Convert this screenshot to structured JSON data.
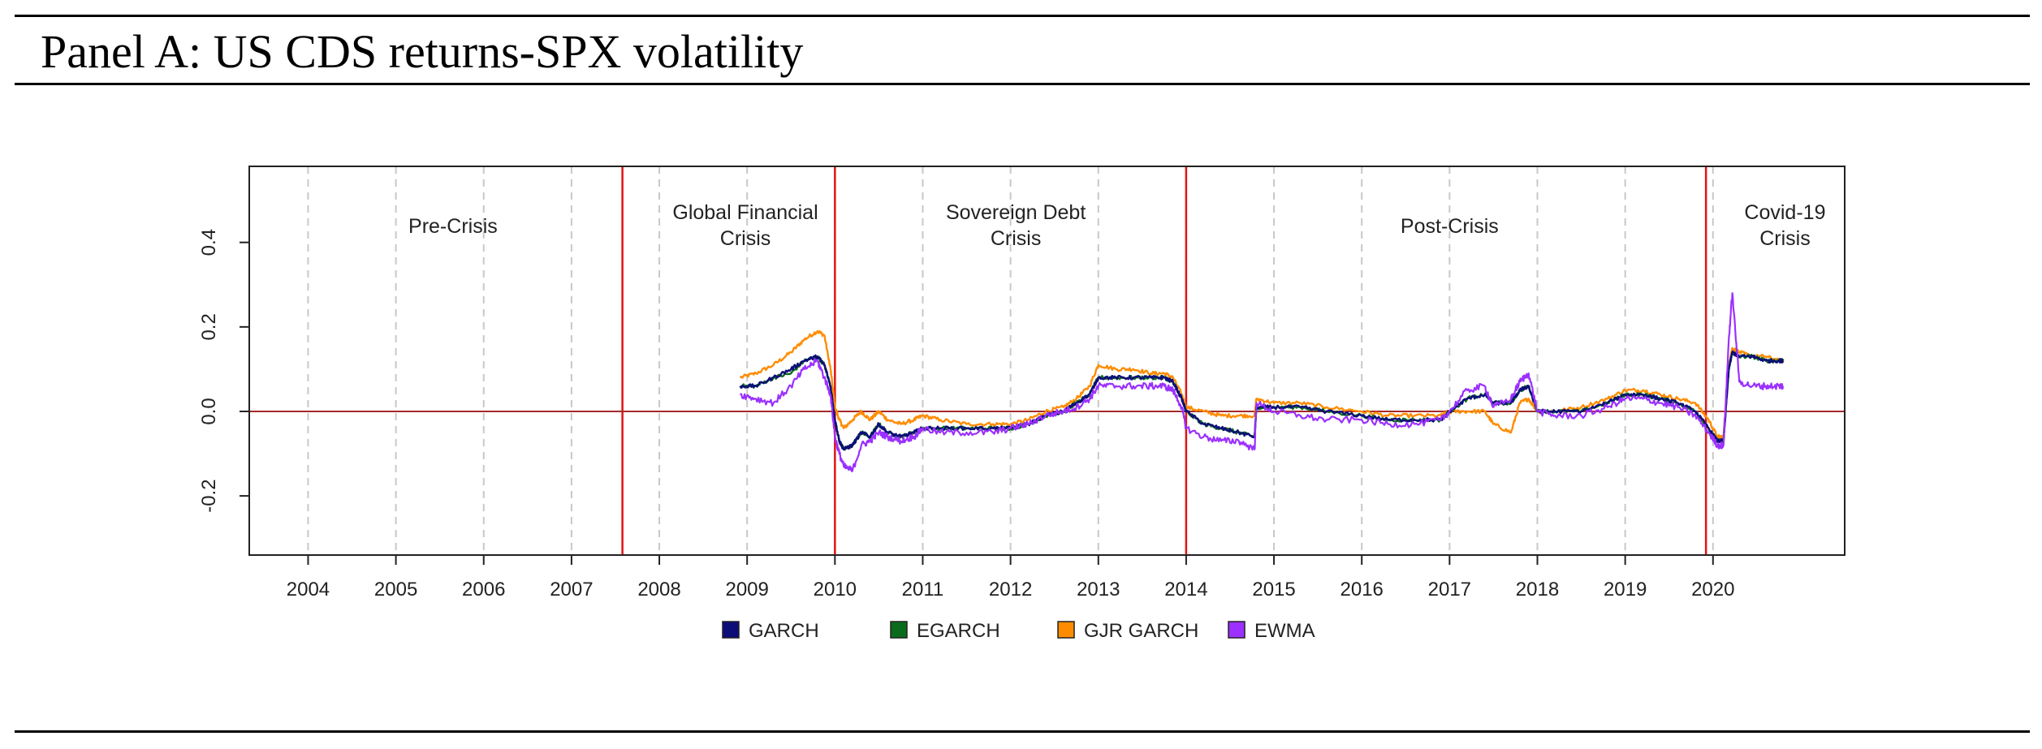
{
  "panel_title": "Panel A: US CDS returns-SPX volatility",
  "colors": {
    "GARCH": "#0d0d7a",
    "EGARCH": "#0b6b1c",
    "GJR GARCH": "#ff8c00",
    "EWMA": "#9b30ff",
    "regime_line": "#e11414",
    "zero_line": "#a52a2a",
    "grid": "#c8c8c8"
  },
  "chart_data": {
    "type": "line",
    "title": "Panel A: US CDS returns-SPX volatility",
    "xlabel": "",
    "ylabel": "",
    "xlim": [
      2003.33,
      2021.5
    ],
    "ylim": [
      -0.34,
      0.58
    ],
    "x_ticks": [
      2004,
      2005,
      2006,
      2007,
      2008,
      2009,
      2010,
      2011,
      2012,
      2013,
      2014,
      2015,
      2016,
      2017,
      2018,
      2019,
      2020
    ],
    "x_tick_labels": [
      "2004",
      "2005",
      "2006",
      "2007",
      "2008",
      "2009",
      "2010",
      "2011",
      "2012",
      "2013",
      "2014",
      "2015",
      "2016",
      "2017",
      "2018",
      "2019",
      "2020"
    ],
    "y_ticks": [
      -0.2,
      0.0,
      0.2,
      0.4
    ],
    "y_tick_labels": [
      "-0.2",
      "0.0",
      "0.2",
      "0.4"
    ],
    "reference_lines": {
      "horizontal": 0.0,
      "regime_boundaries": [
        2007.58,
        2010.0,
        2014.0,
        2019.92
      ]
    },
    "regions": [
      {
        "label_lines": [
          "Pre-Crisis"
        ],
        "x": 2005.65
      },
      {
        "label_lines": [
          "Global Financial",
          "Crisis"
        ],
        "x": 2008.98
      },
      {
        "label_lines": [
          "Sovereign Debt",
          "Crisis"
        ],
        "x": 2012.06
      },
      {
        "label_lines": [
          "Post-Crisis"
        ],
        "x": 2017.0
      },
      {
        "label_lines": [
          "Covid-19",
          "Crisis"
        ],
        "x": 2020.82
      }
    ],
    "legend": {
      "position": "bottom",
      "entries": [
        "GARCH",
        "EGARCH",
        "GJR GARCH",
        "EWMA"
      ]
    },
    "x": [
      2008.92,
      2009.1,
      2009.3,
      2009.5,
      2009.65,
      2009.8,
      2009.88,
      2009.95,
      2010.0,
      2010.05,
      2010.1,
      2010.2,
      2010.3,
      2010.4,
      2010.5,
      2010.6,
      2010.75,
      2010.9,
      2011.0,
      2011.2,
      2011.5,
      2011.8,
      2012.0,
      2012.2,
      2012.4,
      2012.6,
      2012.75,
      2012.9,
      2013.0,
      2013.2,
      2013.4,
      2013.6,
      2013.75,
      2013.85,
      2013.95,
      2014.0,
      2014.2,
      2014.4,
      2014.6,
      2014.78,
      2014.8,
      2015.0,
      2015.3,
      2015.6,
      2016.0,
      2016.3,
      2016.6,
      2016.9,
      2017.0,
      2017.2,
      2017.4,
      2017.5,
      2017.7,
      2017.8,
      2017.9,
      2018.0,
      2018.2,
      2018.5,
      2018.8,
      2019.0,
      2019.2,
      2019.4,
      2019.6,
      2019.8,
      2019.95,
      2020.05,
      2020.12,
      2020.18,
      2020.22,
      2020.3,
      2020.45,
      2020.6,
      2020.75,
      2020.8
    ],
    "series": [
      {
        "name": "GARCH",
        "values": [
          0.06,
          0.06,
          0.08,
          0.1,
          0.12,
          0.13,
          0.11,
          0.06,
          -0.02,
          -0.07,
          -0.09,
          -0.08,
          -0.05,
          -0.06,
          -0.03,
          -0.05,
          -0.06,
          -0.05,
          -0.04,
          -0.04,
          -0.04,
          -0.04,
          -0.04,
          -0.03,
          -0.01,
          0.0,
          0.02,
          0.04,
          0.08,
          0.08,
          0.08,
          0.08,
          0.08,
          0.07,
          0.03,
          0.0,
          -0.03,
          -0.04,
          -0.05,
          -0.06,
          0.01,
          0.01,
          0.01,
          0.0,
          -0.01,
          -0.02,
          -0.02,
          -0.02,
          0.0,
          0.03,
          0.04,
          0.02,
          0.02,
          0.05,
          0.06,
          0.0,
          0.0,
          0.0,
          0.02,
          0.04,
          0.04,
          0.03,
          0.02,
          0.0,
          -0.04,
          -0.07,
          -0.07,
          0.1,
          0.14,
          0.13,
          0.13,
          0.12,
          0.12,
          0.12
        ]
      },
      {
        "name": "EGARCH",
        "values": [
          0.06,
          0.06,
          0.08,
          0.09,
          0.12,
          0.13,
          0.11,
          0.06,
          -0.02,
          -0.07,
          -0.09,
          -0.08,
          -0.05,
          -0.06,
          -0.03,
          -0.05,
          -0.06,
          -0.05,
          -0.04,
          -0.04,
          -0.04,
          -0.04,
          -0.04,
          -0.03,
          -0.01,
          0.0,
          0.02,
          0.04,
          0.08,
          0.08,
          0.08,
          0.08,
          0.08,
          0.07,
          0.03,
          0.0,
          -0.03,
          -0.04,
          -0.05,
          -0.06,
          0.01,
          0.01,
          0.01,
          0.0,
          -0.01,
          -0.02,
          -0.02,
          -0.02,
          0.0,
          0.03,
          0.04,
          0.02,
          0.02,
          0.05,
          0.06,
          0.0,
          0.0,
          0.0,
          0.02,
          0.04,
          0.04,
          0.03,
          0.02,
          0.0,
          -0.04,
          -0.07,
          -0.07,
          0.1,
          0.14,
          0.13,
          0.13,
          0.12,
          0.12,
          0.12
        ]
      },
      {
        "name": "GJR GARCH",
        "values": [
          0.08,
          0.09,
          0.11,
          0.14,
          0.17,
          0.19,
          0.18,
          0.1,
          0.01,
          -0.02,
          -0.04,
          -0.02,
          0.0,
          -0.02,
          0.0,
          -0.02,
          -0.03,
          -0.02,
          -0.01,
          -0.02,
          -0.03,
          -0.03,
          -0.03,
          -0.02,
          0.0,
          0.01,
          0.03,
          0.06,
          0.11,
          0.1,
          0.1,
          0.09,
          0.09,
          0.08,
          0.04,
          0.01,
          0.0,
          -0.01,
          -0.01,
          -0.01,
          0.03,
          0.02,
          0.02,
          0.01,
          0.0,
          -0.01,
          -0.01,
          -0.01,
          0.0,
          0.0,
          0.0,
          -0.03,
          -0.05,
          0.02,
          0.03,
          0.0,
          0.0,
          0.01,
          0.03,
          0.05,
          0.05,
          0.04,
          0.03,
          0.02,
          -0.02,
          -0.06,
          -0.06,
          0.11,
          0.15,
          0.14,
          0.13,
          0.13,
          0.12,
          0.12
        ]
      },
      {
        "name": "EWMA",
        "values": [
          0.04,
          0.03,
          0.02,
          0.06,
          0.1,
          0.12,
          0.08,
          0.04,
          -0.06,
          -0.1,
          -0.13,
          -0.14,
          -0.08,
          -0.07,
          -0.05,
          -0.06,
          -0.07,
          -0.06,
          -0.04,
          -0.05,
          -0.05,
          -0.05,
          -0.04,
          -0.03,
          -0.01,
          0.0,
          0.01,
          0.03,
          0.06,
          0.06,
          0.06,
          0.06,
          0.06,
          0.05,
          0.01,
          -0.04,
          -0.06,
          -0.07,
          -0.07,
          -0.09,
          0.02,
          0.0,
          -0.01,
          -0.02,
          -0.02,
          -0.03,
          -0.03,
          -0.02,
          0.0,
          0.05,
          0.06,
          0.01,
          0.03,
          0.07,
          0.09,
          0.0,
          -0.01,
          -0.01,
          0.01,
          0.03,
          0.03,
          0.02,
          0.01,
          -0.01,
          -0.05,
          -0.08,
          -0.08,
          0.17,
          0.28,
          0.07,
          0.06,
          0.06,
          0.06,
          0.06
        ]
      }
    ]
  }
}
